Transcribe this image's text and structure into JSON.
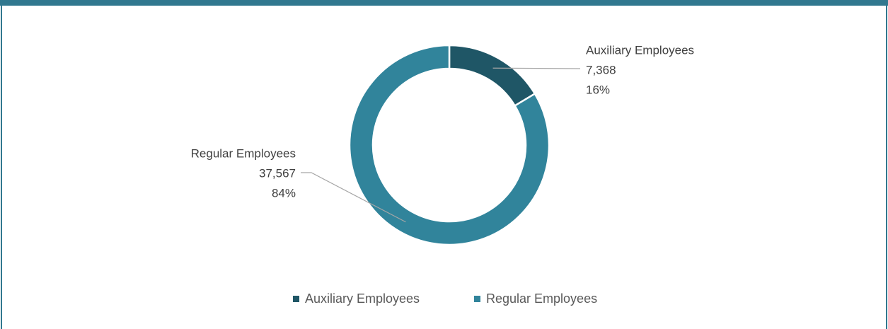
{
  "chart_data": {
    "type": "donut",
    "categories": [
      "Auxiliary Employees",
      "Regular Employees"
    ],
    "values": [
      7368,
      37567
    ],
    "value_labels": [
      "7,368",
      "37,567"
    ],
    "percents": [
      16,
      84
    ],
    "percent_labels": [
      "16%",
      "84%"
    ],
    "colors": [
      "#1f5666",
      "#31849b"
    ],
    "legend": "bottom"
  }
}
